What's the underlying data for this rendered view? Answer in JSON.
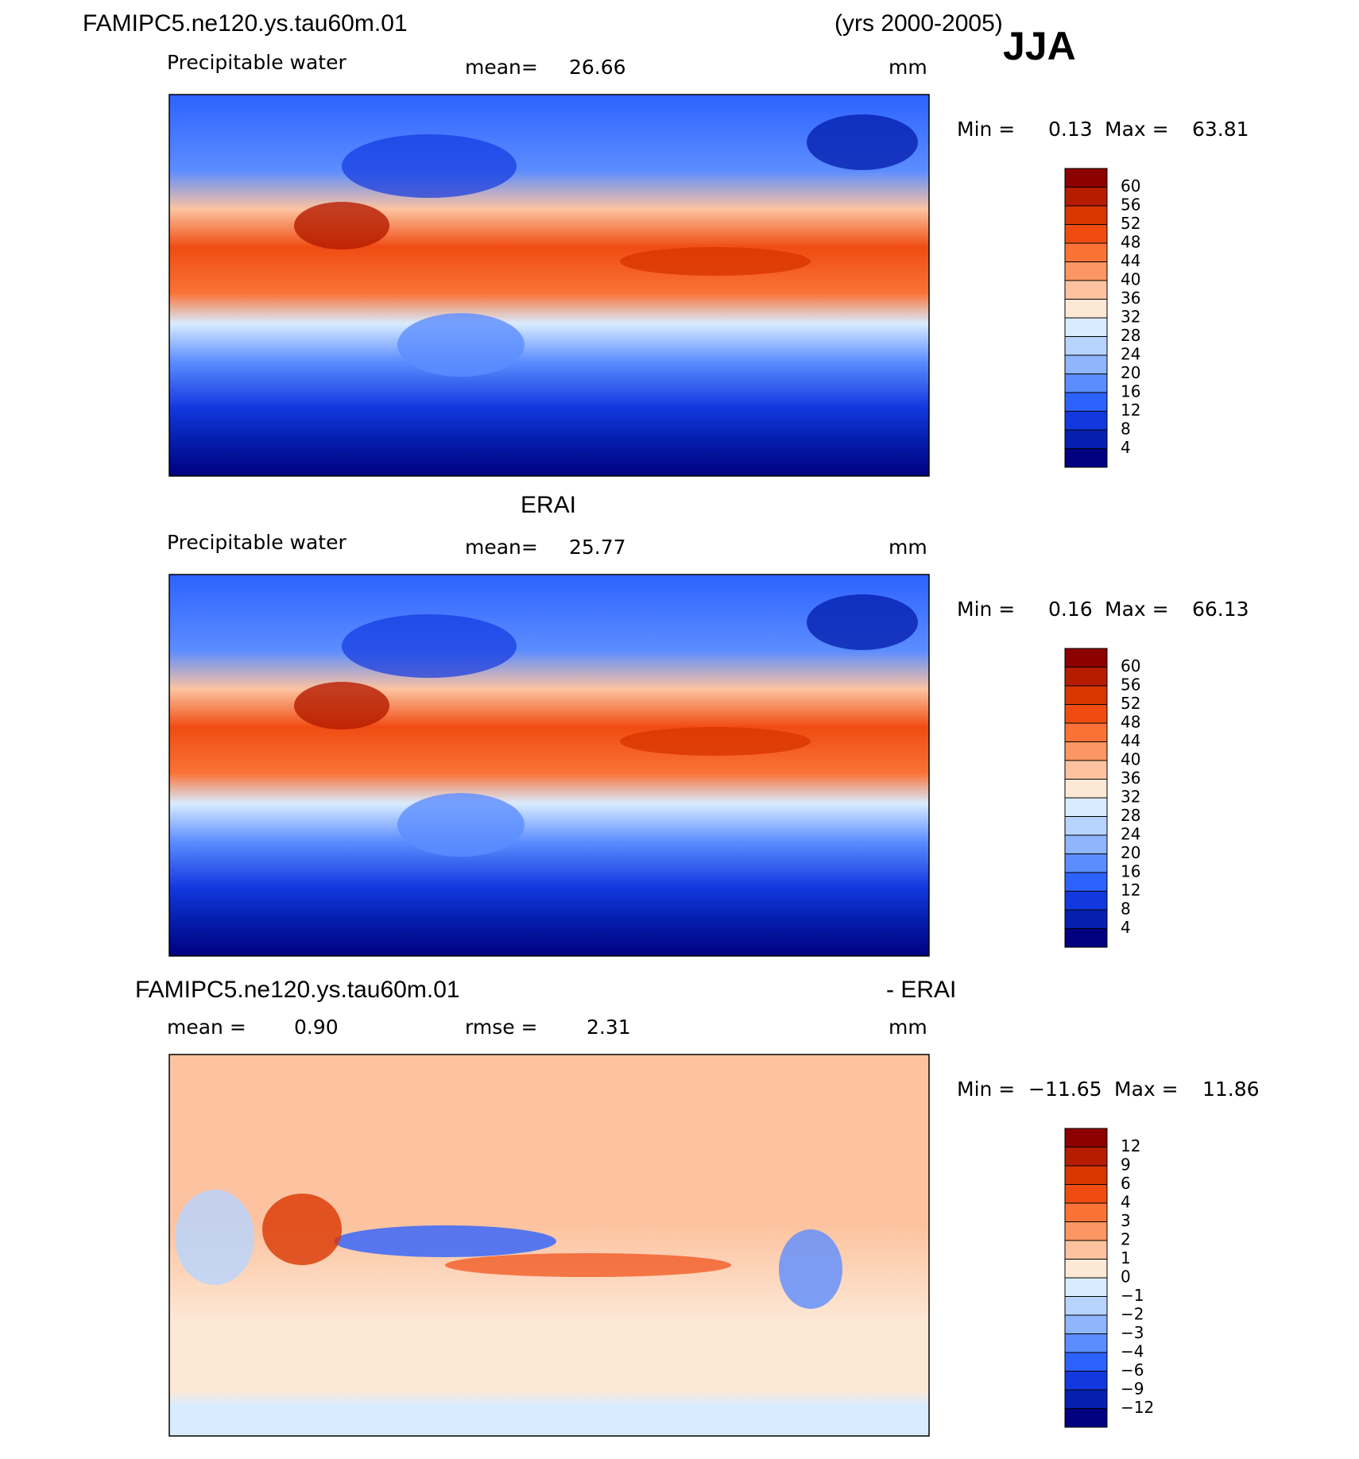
{
  "header": {
    "title": "FAMIPC5.ne120.ys.tau60m.01",
    "period": "(yrs 2000-2005)",
    "season": "JJA"
  },
  "colorbar_colors": [
    "#8c0000",
    "#b51c00",
    "#d93600",
    "#f04c12",
    "#fa7236",
    "#fc9662",
    "#fdc3a0",
    "#fde8d6",
    "#d9ecff",
    "#b7d4ff",
    "#8fb5ff",
    "#5c8dff",
    "#2d62ff",
    "#1239e0",
    "#0520b0",
    "#000080"
  ],
  "panels": [
    {
      "variable": "Precipitable water",
      "mean_label": "mean=",
      "mean": "26.66",
      "units": "mm",
      "min_label": "Min =",
      "min": "0.13",
      "max_label": "Max =",
      "max": "63.81",
      "colorbar": {
        "labels": [
          "60",
          "56",
          "52",
          "48",
          "44",
          "40",
          "36",
          "32",
          "28",
          "24",
          "20",
          "16",
          "12",
          "8",
          "4"
        ]
      }
    },
    {
      "title": "ERAI",
      "variable": "Precipitable water",
      "mean_label": "mean=",
      "mean": "25.77",
      "units": "mm",
      "min_label": "Min =",
      "min": "0.16",
      "max_label": "Max =",
      "max": "66.13",
      "colorbar": {
        "labels": [
          "60",
          "56",
          "52",
          "48",
          "44",
          "40",
          "36",
          "32",
          "28",
          "24",
          "20",
          "16",
          "12",
          "8",
          "4"
        ]
      }
    },
    {
      "title": "FAMIPC5.ne120.ys.tau60m.01",
      "title_right": "- ERAI",
      "mean_label": "mean =",
      "mean": "0.90",
      "rmse_label": "rmse =",
      "rmse": "2.31",
      "units": "mm",
      "min_label": "Min =",
      "min": "−11.65",
      "max_label": "Max =",
      "max": "11.86",
      "colorbar": {
        "labels": [
          "12",
          "9",
          "6",
          "4",
          "3",
          "2",
          "1",
          "0",
          "−1",
          "−2",
          "−3",
          "−4",
          "−6",
          "−9",
          "−12"
        ]
      }
    }
  ]
}
